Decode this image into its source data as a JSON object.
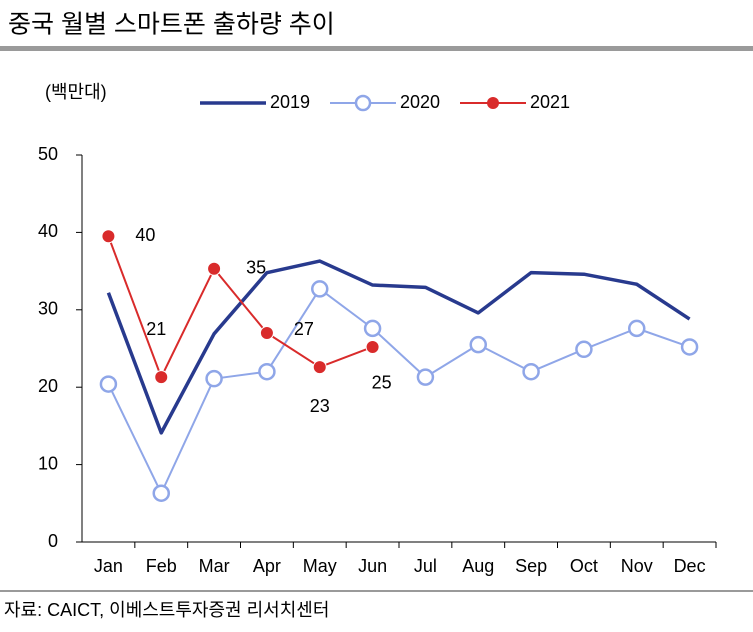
{
  "chart_data": {
    "type": "line",
    "title": "중국 월별 스마트폰 출하량 추이",
    "y_label": "(백만대)",
    "source": "자료: CAICT, 이베스트투자증권 리서치센터",
    "categories": [
      "Jan",
      "Feb",
      "Mar",
      "Apr",
      "May",
      "Jun",
      "Jul",
      "Aug",
      "Sep",
      "Oct",
      "Nov",
      "Dec"
    ],
    "series": [
      {
        "name": "2019",
        "color": "#283a8e",
        "marker": "none",
        "values": [
          32.2,
          14.1,
          26.9,
          34.8,
          36.3,
          33.2,
          32.9,
          29.6,
          34.8,
          34.6,
          33.3,
          28.8
        ]
      },
      {
        "name": "2020",
        "color": "#8fa6e8",
        "marker": "hollow",
        "values": [
          20.4,
          6.3,
          21.1,
          22.0,
          32.7,
          27.6,
          21.3,
          25.5,
          22.0,
          24.9,
          27.6,
          25.2
        ]
      },
      {
        "name": "2021",
        "color": "#d92b2b",
        "marker": "filled",
        "values": [
          39.5,
          21.3,
          35.3,
          27.0,
          22.6,
          25.2,
          null,
          null,
          null,
          null,
          null,
          null
        ],
        "value_labels": [
          "40",
          "21",
          "35",
          "27",
          "23",
          "25",
          null,
          null,
          null,
          null,
          null,
          null
        ]
      }
    ],
    "ylim": [
      0,
      50
    ],
    "yticks": [
      0,
      10,
      20,
      30,
      40,
      50
    ],
    "legend": "top"
  }
}
